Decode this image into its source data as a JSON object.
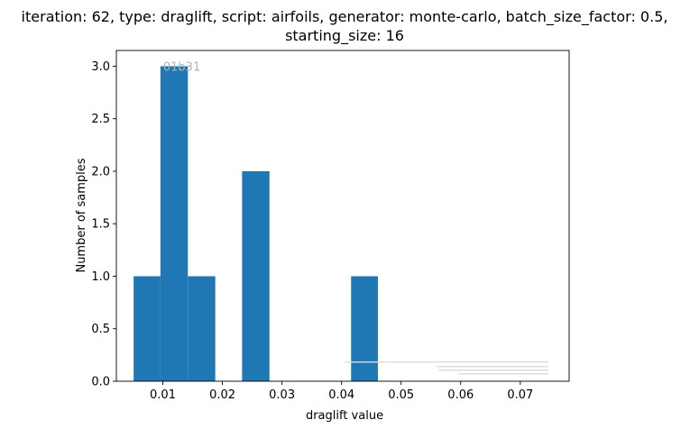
{
  "chart_data": {
    "type": "bar",
    "title_lines": [
      "iteration: 62, type: draglift, script: airfoils, generator: monte-carlo, batch_size_factor: 0.5,",
      "starting_size: 16"
    ],
    "xlabel": "draglift value",
    "ylabel": "Number of samples",
    "xlim": [
      0.0022,
      0.0782
    ],
    "ylim": [
      0,
      3.15
    ],
    "x_ticks": [
      0.01,
      0.02,
      0.03,
      0.04,
      0.05,
      0.06,
      0.07
    ],
    "x_tick_labels": [
      "0.01",
      "0.02",
      "0.03",
      "0.04",
      "0.05",
      "0.06",
      "0.07"
    ],
    "y_ticks": [
      0,
      0.5,
      1,
      1.5,
      2,
      2.5,
      3
    ],
    "y_tick_labels": [
      "0.0",
      "0.5",
      "1.0",
      "1.5",
      "2.0",
      "2.5",
      "3.0"
    ],
    "bar_color": "#1f77b4",
    "bins": [
      {
        "x0": 0.0051,
        "x1": 0.0096,
        "count": 1
      },
      {
        "x0": 0.0096,
        "x1": 0.0142,
        "count": 3
      },
      {
        "x0": 0.0142,
        "x1": 0.0188,
        "count": 1
      },
      {
        "x0": 0.0188,
        "x1": 0.0233,
        "count": 0
      },
      {
        "x0": 0.0233,
        "x1": 0.0279,
        "count": 2
      },
      {
        "x0": 0.0279,
        "x1": 0.0324,
        "count": 0
      },
      {
        "x0": 0.0324,
        "x1": 0.037,
        "count": 0
      },
      {
        "x0": 0.037,
        "x1": 0.0416,
        "count": 0
      },
      {
        "x0": 0.0416,
        "x1": 0.0461,
        "count": 1
      }
    ],
    "annotation": "01b31",
    "grid": false,
    "legend": "none"
  }
}
